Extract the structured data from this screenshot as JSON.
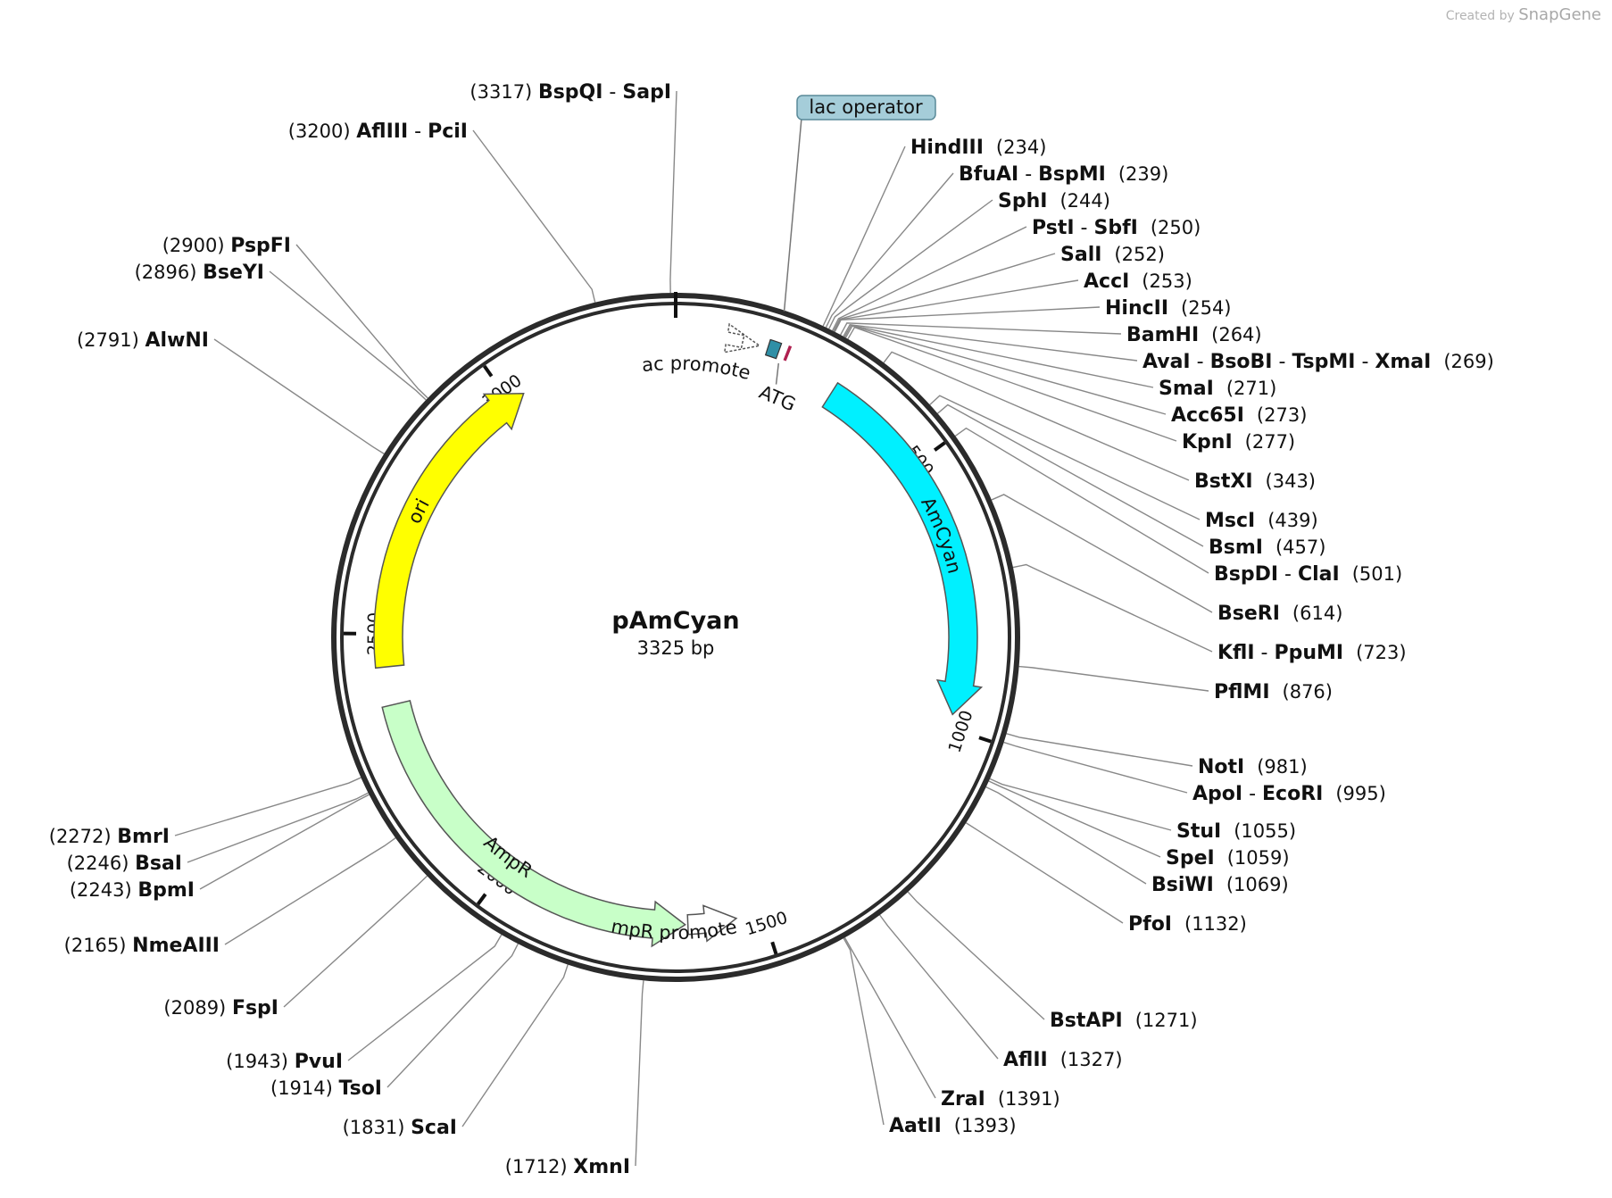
{
  "credit": {
    "prefix": "Created by",
    "brand": "SnapGene"
  },
  "plasmid": {
    "name": "pAmCyan",
    "size_label": "3325 bp",
    "length": 3325
  },
  "ticks": [
    {
      "pos": 500,
      "label": "500"
    },
    {
      "pos": 1000,
      "label": "1000"
    },
    {
      "pos": 1500,
      "label": "1500"
    },
    {
      "pos": 2000,
      "label": "2000"
    },
    {
      "pos": 2500,
      "label": "2500"
    },
    {
      "pos": 3000,
      "label": "3000"
    }
  ],
  "features": [
    {
      "label": "AmCyan",
      "color": "#00f0ff",
      "start": 300,
      "end": 975,
      "dir": 1
    },
    {
      "label": "ori",
      "color": "#ffff00",
      "start": 2440,
      "end": 3030,
      "dir": 1
    },
    {
      "label": "AmpR",
      "color": "#c8ffc8",
      "start": 1645,
      "end": 2370,
      "dir": -1
    },
    {
      "label": "AmpR promoter",
      "color": "#ffffff",
      "start": 1550,
      "end": 1640,
      "dir": -1
    },
    {
      "label": "lac promoter",
      "color": "#ffffff",
      "start": 118,
      "end": 148,
      "dir": 1
    },
    {
      "label": "lac operator",
      "color": "#a5cdd9",
      "start": 163,
      "end": 183,
      "dir": 1
    },
    {
      "label": "ATG",
      "color": "#b02050",
      "start": 197,
      "end": 200,
      "dir": 1
    }
  ],
  "sites": [
    {
      "label": "BspQI - SapI",
      "num": "(3317)",
      "pos": 3317
    },
    {
      "label": "AflIII - PciI",
      "num": "(3200)",
      "pos": 3200
    },
    {
      "label": "PspFI",
      "num": "(2900)",
      "pos": 2900
    },
    {
      "label": "BseYI",
      "num": "(2896)",
      "pos": 2896
    },
    {
      "label": "AlwNI",
      "num": "(2791)",
      "pos": 2791
    },
    {
      "label": "HindIII",
      "num": "(234)",
      "pos": 234
    },
    {
      "label": "BfuAI - BspMI",
      "num": "(239)",
      "pos": 239
    },
    {
      "label": "SphI",
      "num": "(244)",
      "pos": 244
    },
    {
      "label": "PstI - SbfI",
      "num": "(250)",
      "pos": 250
    },
    {
      "label": "SalI",
      "num": "(252)",
      "pos": 252
    },
    {
      "label": "AccI",
      "num": "(253)",
      "pos": 253
    },
    {
      "label": "HincII",
      "num": "(254)",
      "pos": 254
    },
    {
      "label": "BamHI",
      "num": "(264)",
      "pos": 264
    },
    {
      "label": "AvaI - BsoBI - TspMI - XmaI",
      "num": "(269)",
      "pos": 269
    },
    {
      "label": "SmaI",
      "num": "(271)",
      "pos": 271
    },
    {
      "label": "Acc65I",
      "num": "(273)",
      "pos": 273
    },
    {
      "label": "KpnI",
      "num": "(277)",
      "pos": 277
    },
    {
      "label": "BstXI",
      "num": "(343)",
      "pos": 343
    },
    {
      "label": "MscI",
      "num": "(439)",
      "pos": 439
    },
    {
      "label": "BsmI",
      "num": "(457)",
      "pos": 457
    },
    {
      "label": "BspDI - ClaI",
      "num": "(501)",
      "pos": 501
    },
    {
      "label": "BseRI",
      "num": "(614)",
      "pos": 614
    },
    {
      "label": "KflI - PpuMI",
      "num": "(723)",
      "pos": 723
    },
    {
      "label": "PflMI",
      "num": "(876)",
      "pos": 876
    },
    {
      "label": "NotI",
      "num": "(981)",
      "pos": 981
    },
    {
      "label": "ApoI - EcoRI",
      "num": "(995)",
      "pos": 995
    },
    {
      "label": "StuI",
      "num": "(1055)",
      "pos": 1055
    },
    {
      "label": "SpeI",
      "num": "(1059)",
      "pos": 1059
    },
    {
      "label": "BsiWI",
      "num": "(1069)",
      "pos": 1069
    },
    {
      "label": "PfoI",
      "num": "(1132)",
      "pos": 1132
    },
    {
      "label": "BstAPI",
      "num": "(1271)",
      "pos": 1271
    },
    {
      "label": "AflII",
      "num": "(1327)",
      "pos": 1327
    },
    {
      "label": "ZraI",
      "num": "(1391)",
      "pos": 1391
    },
    {
      "label": "AatII",
      "num": "(1393)",
      "pos": 1393
    },
    {
      "label": "XmnI",
      "num": "(1712)",
      "pos": 1712
    },
    {
      "label": "ScaI",
      "num": "(1831)",
      "pos": 1831
    },
    {
      "label": "TsoI",
      "num": "(1914)",
      "pos": 1914
    },
    {
      "label": "PvuI",
      "num": "(1943)",
      "pos": 1943
    },
    {
      "label": "FspI",
      "num": "(2089)",
      "pos": 2089
    },
    {
      "label": "NmeAIII",
      "num": "(2165)",
      "pos": 2165
    },
    {
      "label": "BpmI",
      "num": "(2243)",
      "pos": 2243
    },
    {
      "label": "BsaI",
      "num": "(2246)",
      "pos": 2246
    },
    {
      "label": "BmrI",
      "num": "(2272)",
      "pos": 2272
    }
  ]
}
